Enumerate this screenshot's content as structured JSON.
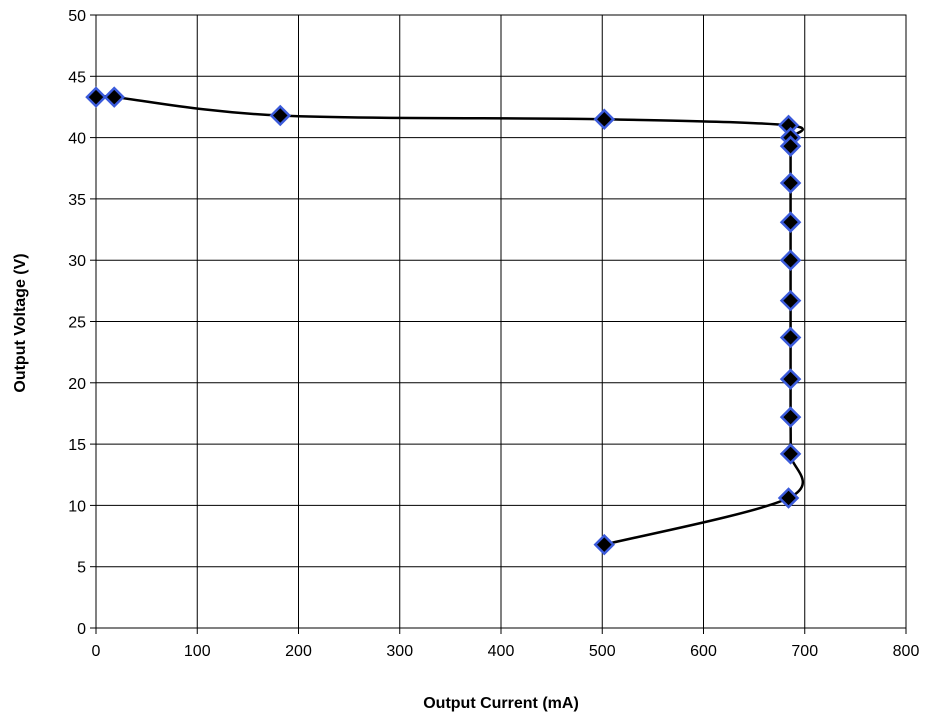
{
  "chart_data": {
    "type": "scatter",
    "title": "",
    "xlabel": "Output Current (mA)",
    "ylabel": "Output Voltage (V)",
    "xlim": [
      0,
      800
    ],
    "ylim": [
      0,
      50
    ],
    "x_ticks": [
      0,
      100,
      200,
      300,
      400,
      500,
      600,
      700,
      800
    ],
    "y_ticks": [
      0,
      5,
      10,
      15,
      20,
      25,
      30,
      35,
      40,
      45,
      50
    ],
    "grid": true,
    "legend": "none",
    "series": [
      {
        "line_color": "#000000",
        "marker": "diamond",
        "marker_fill": "#000000",
        "marker_edge": "#3b5bdb",
        "smooth": true,
        "points": [
          {
            "x": 0,
            "y": 43.3
          },
          {
            "x": 18,
            "y": 43.3
          },
          {
            "x": 182,
            "y": 41.8
          },
          {
            "x": 502,
            "y": 41.5
          },
          {
            "x": 684,
            "y": 41.0
          },
          {
            "x": 686,
            "y": 40.0
          },
          {
            "x": 686,
            "y": 39.3
          },
          {
            "x": 686,
            "y": 36.3
          },
          {
            "x": 686,
            "y": 33.1
          },
          {
            "x": 686,
            "y": 30.0
          },
          {
            "x": 686,
            "y": 26.7
          },
          {
            "x": 686,
            "y": 23.7
          },
          {
            "x": 686,
            "y": 20.3
          },
          {
            "x": 686,
            "y": 17.2
          },
          {
            "x": 686,
            "y": 14.2
          },
          {
            "x": 684,
            "y": 10.6
          },
          {
            "x": 502,
            "y": 6.8
          }
        ]
      }
    ]
  }
}
